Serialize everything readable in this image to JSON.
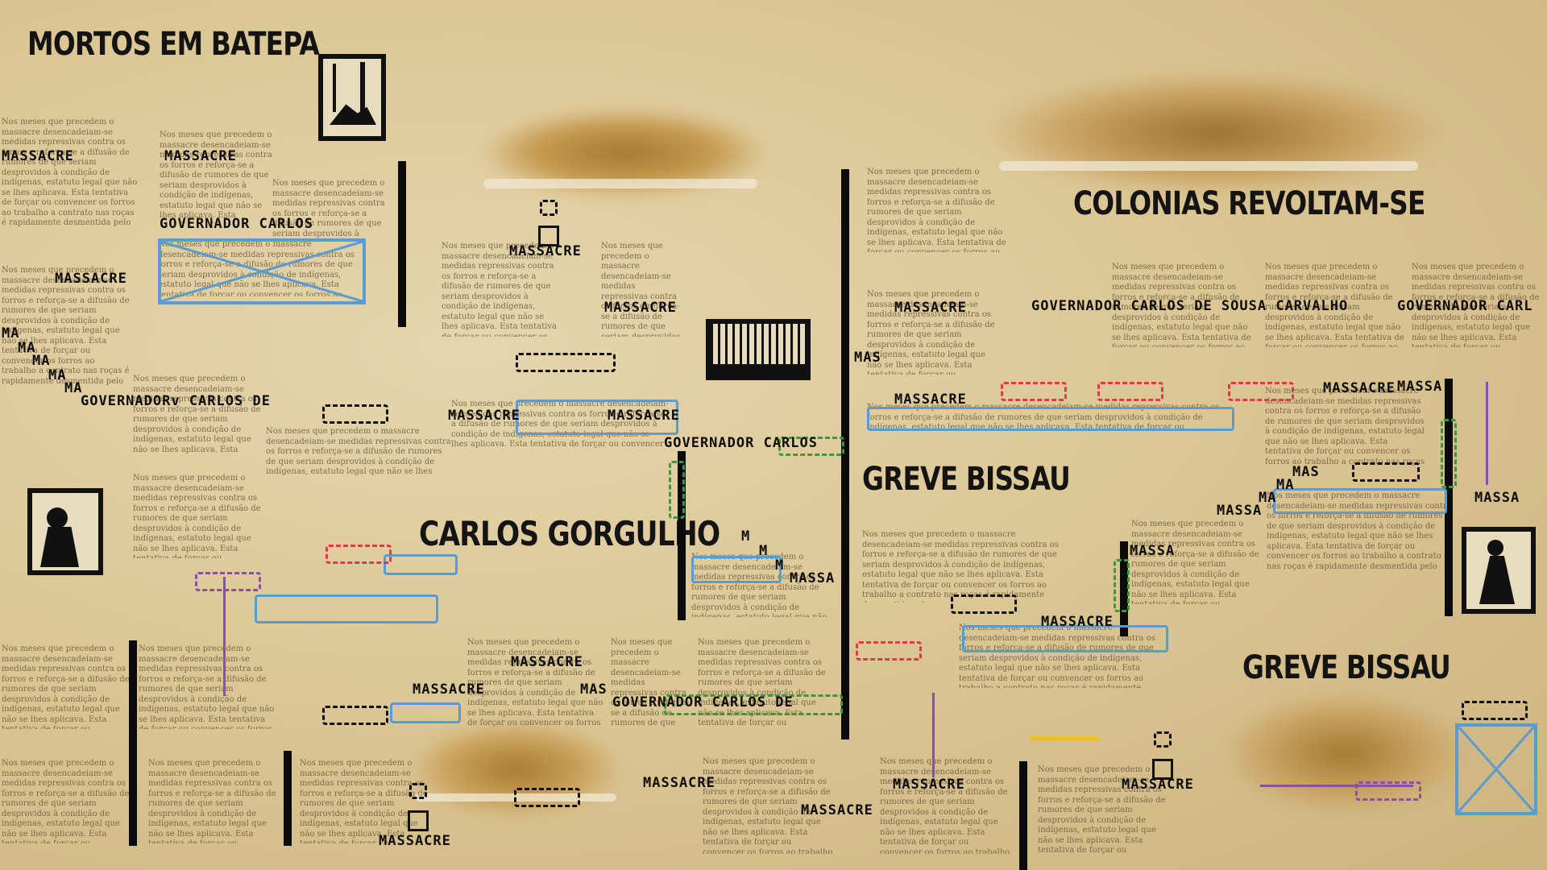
{
  "headlines": {
    "mortos": "MORTOS EM BATEPA",
    "colonias": "COLONIAS REVOLTAM-SE",
    "gorgulho": "CARLOS GORGULHO",
    "greve1": "GREVE BISSAU",
    "greve2": "GREVE BISSAU"
  },
  "paragraph_text": "Nos meses que precedem o massacre desencadeiam-se medidas repressivas contra os forros e reforça-se a difusão de rumores de que seriam desprovidos à condição de indígenas, estatuto legal que não se lhes aplicava. Esta tentativa de forçar ou convencer os forros ao trabalho a contrato nas roças é rapidamente desmentida pelo",
  "labels": {
    "massacre": "MASSACRE",
    "ma": "MA",
    "mas": "MAS",
    "massa": "MASSA",
    "m": "M",
    "governador_carlos": "GOVERNADOR CARLOS",
    "governador_carlos_de": "GOVERNADORv CARLOS DE",
    "governador_carlos_de_2": "GOVERNADOR CARLOS DE",
    "governador_full": "GOVERNADOR CARLOS DE SOUSA CARVALHO",
    "governador_carl": "GOVERNADOR CARL"
  },
  "colors": {
    "paper": "#dcc796",
    "ink": "#111111",
    "blue": "#5a9bd0",
    "red": "#e0394a",
    "green": "#3a9a3a",
    "purple": "#8b4fa8",
    "yellow": "#f0c020"
  }
}
